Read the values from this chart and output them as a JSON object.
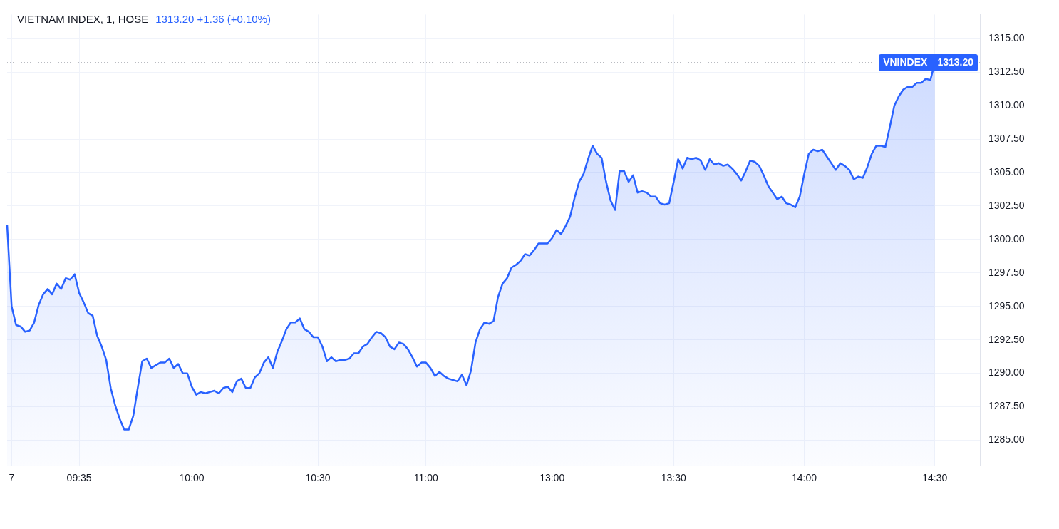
{
  "chart_data": {
    "type": "area",
    "title": "VIETNAM INDEX, 1, HOSE",
    "subtitle": "1313.20  +1.36 (+0.10%)",
    "categories": [
      null,
      "7",
      null,
      null,
      null,
      null,
      null,
      null,
      null,
      null,
      null,
      null,
      null,
      null,
      null,
      null,
      "09:35",
      null,
      null,
      null,
      null,
      null,
      null,
      null,
      null,
      null,
      null,
      null,
      null,
      null,
      null,
      null,
      null,
      null,
      null,
      null,
      null,
      null,
      null,
      null,
      null,
      "10:00",
      null,
      null,
      null,
      null,
      null,
      null,
      null,
      null,
      null,
      null,
      null,
      null,
      null,
      null,
      null,
      null,
      null,
      null,
      null,
      null,
      null,
      null,
      null,
      null,
      null,
      null,
      null,
      "10:30",
      null,
      null,
      null,
      null,
      null,
      null,
      null,
      null,
      null,
      null,
      null,
      null,
      null,
      null,
      null,
      null,
      null,
      null,
      null,
      null,
      null,
      null,
      null,
      "11:00",
      null,
      null,
      null,
      null,
      null,
      null,
      null,
      null,
      null,
      null,
      null,
      null,
      null,
      null,
      null,
      null,
      null,
      null,
      null,
      null,
      null,
      null,
      null,
      null,
      null,
      null,
      null,
      "13:00",
      null,
      null,
      null,
      null,
      null,
      null,
      null,
      null,
      null,
      null,
      null,
      null,
      null,
      null,
      null,
      null,
      null,
      null,
      null,
      null,
      null,
      null,
      null,
      null,
      null,
      null,
      "13:30",
      null,
      null,
      null,
      null,
      null,
      null,
      null,
      null,
      null,
      null,
      null,
      null,
      null,
      null,
      null,
      null,
      null,
      null,
      null,
      null,
      null,
      null,
      null,
      null,
      null,
      null,
      null,
      null,
      "14:00",
      null,
      null,
      null,
      null,
      null,
      null,
      null,
      null,
      null,
      null,
      null,
      null,
      null,
      null,
      null,
      null,
      null,
      null,
      null,
      null,
      null,
      null,
      null,
      null,
      null,
      null,
      null,
      null,
      "14:30",
      null,
      null,
      null,
      null,
      null,
      null,
      null,
      null,
      null,
      null
    ],
    "series": [
      {
        "name": "VNINDEX",
        "color": "#2962ff",
        "values": [
          1301.1,
          1295.0,
          1293.6,
          1293.5,
          1293.1,
          1293.2,
          1293.8,
          1295.1,
          1295.9,
          1296.3,
          1295.9,
          1296.7,
          1296.3,
          1297.1,
          1297.0,
          1297.4,
          1296.0,
          1295.3,
          1294.5,
          1294.3,
          1292.8,
          1292.0,
          1291.0,
          1288.9,
          1287.6,
          1286.6,
          1285.8,
          1285.8,
          1286.8,
          1288.9,
          1290.9,
          1291.1,
          1290.4,
          1290.6,
          1290.8,
          1290.8,
          1291.1,
          1290.4,
          1290.7,
          1290.0,
          1290.0,
          1289.0,
          1288.4,
          1288.6,
          1288.5,
          1288.6,
          1288.7,
          1288.5,
          1288.9,
          1289.0,
          1288.6,
          1289.4,
          1289.6,
          1288.9,
          1288.9,
          1289.7,
          1290.0,
          1290.8,
          1291.2,
          1290.4,
          1291.6,
          1292.4,
          1293.3,
          1293.8,
          1293.8,
          1294.1,
          1293.3,
          1293.1,
          1292.7,
          1292.7,
          1292.0,
          1290.9,
          1291.2,
          1290.9,
          1291.0,
          1291.0,
          1291.1,
          1291.5,
          1291.5,
          1292.0,
          1292.2,
          1292.7,
          1293.1,
          1293.0,
          1292.7,
          1292.0,
          1291.8,
          1292.3,
          1292.2,
          1291.8,
          1291.2,
          1290.5,
          1290.8,
          1290.8,
          1290.4,
          1289.8,
          1290.1,
          1289.8,
          1289.6,
          1289.5,
          1289.4,
          1289.9,
          1289.1,
          1290.2,
          1292.3,
          1293.3,
          1293.8,
          1293.7,
          1293.9,
          1295.7,
          1296.7,
          1297.1,
          1297.9,
          1298.1,
          1298.4,
          1298.9,
          1298.8,
          1299.2,
          1299.7,
          1299.7,
          1299.7,
          1300.1,
          1300.7,
          1300.4,
          1301.0,
          1301.7,
          1303.1,
          1304.3,
          1304.9,
          1306.0,
          1307.0,
          1306.4,
          1306.1,
          1304.3,
          1302.9,
          1302.2,
          1305.1,
          1305.1,
          1304.3,
          1304.8,
          1303.5,
          1303.6,
          1303.5,
          1303.2,
          1303.2,
          1302.7,
          1302.6,
          1302.7,
          1304.3,
          1306.0,
          1305.3,
          1306.1,
          1306.0,
          1306.1,
          1305.9,
          1305.2,
          1306.0,
          1305.6,
          1305.7,
          1305.5,
          1305.6,
          1305.3,
          1304.9,
          1304.4,
          1305.1,
          1305.9,
          1305.8,
          1305.5,
          1304.8,
          1304.0,
          1303.5,
          1303.0,
          1303.2,
          1302.7,
          1302.6,
          1302.4,
          1303.2,
          1304.9,
          1306.4,
          1306.7,
          1306.6,
          1306.7,
          1306.2,
          1305.7,
          1305.2,
          1305.7,
          1305.5,
          1305.2,
          1304.5,
          1304.7,
          1304.6,
          1305.4,
          1306.4,
          1307.0,
          1307.0,
          1306.9,
          1308.4,
          1310.0,
          1310.7,
          1311.2,
          1311.4,
          1311.4,
          1311.7,
          1311.7,
          1312.0,
          1311.9,
          1313.2,
          null,
          null,
          null,
          null,
          null,
          null,
          null,
          null,
          null,
          null
        ]
      }
    ],
    "ylim": [
      1283.1,
      1316.8
    ],
    "yticks": [
      {
        "value": 1285,
        "label": "1285.00"
      },
      {
        "value": 1287.5,
        "label": "1287.50"
      },
      {
        "value": 1290,
        "label": "1290.00"
      },
      {
        "value": 1292.5,
        "label": "1292.50"
      },
      {
        "value": 1295,
        "label": "1295.00"
      },
      {
        "value": 1297.5,
        "label": "1297.50"
      },
      {
        "value": 1300,
        "label": "1300.00"
      },
      {
        "value": 1302.5,
        "label": "1302.50"
      },
      {
        "value": 1305,
        "label": "1305.00"
      },
      {
        "value": 1307.5,
        "label": "1307.50"
      },
      {
        "value": 1310,
        "label": "1310.00"
      },
      {
        "value": 1312.5,
        "label": "1312.50"
      },
      {
        "value": 1315,
        "label": "1315.00"
      }
    ],
    "ref_lines": [
      {
        "axis": "y",
        "value": 1313.2,
        "label": "1313.20",
        "color": "#787b86",
        "line_style": "dotted"
      }
    ],
    "grid": true,
    "legend": false
  }
}
